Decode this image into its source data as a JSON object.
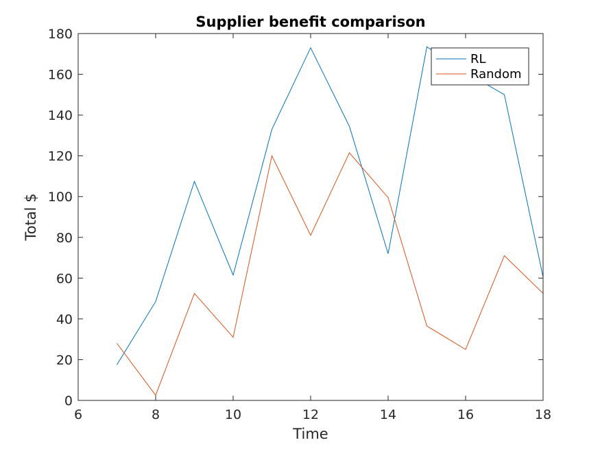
{
  "chart_data": {
    "type": "line",
    "title": "Supplier benefit comparison",
    "xlabel": "Time",
    "ylabel": "Total $",
    "xlim": [
      6,
      18
    ],
    "ylim": [
      0,
      180
    ],
    "xticks": [
      "6",
      "8",
      "10",
      "12",
      "14",
      "16",
      "18"
    ],
    "yticks": [
      "0",
      "20",
      "40",
      "60",
      "80",
      "100",
      "120",
      "140",
      "160",
      "180"
    ],
    "legend_position": "top-right",
    "grid": false,
    "x": [
      7,
      8,
      9,
      10,
      11,
      12,
      13,
      14,
      15,
      16,
      17,
      18
    ],
    "series": [
      {
        "name": "RL",
        "color": "#0072BD",
        "values": [
          17.5,
          48.5,
          107.5,
          61.5,
          133,
          173,
          134.5,
          72,
          173.5,
          161,
          150,
          60.5
        ]
      },
      {
        "name": "Random",
        "color": "#D95319",
        "values": [
          28,
          2.5,
          52.5,
          31,
          120,
          81,
          121.5,
          99.5,
          36.5,
          25,
          71,
          52.5
        ]
      }
    ]
  }
}
